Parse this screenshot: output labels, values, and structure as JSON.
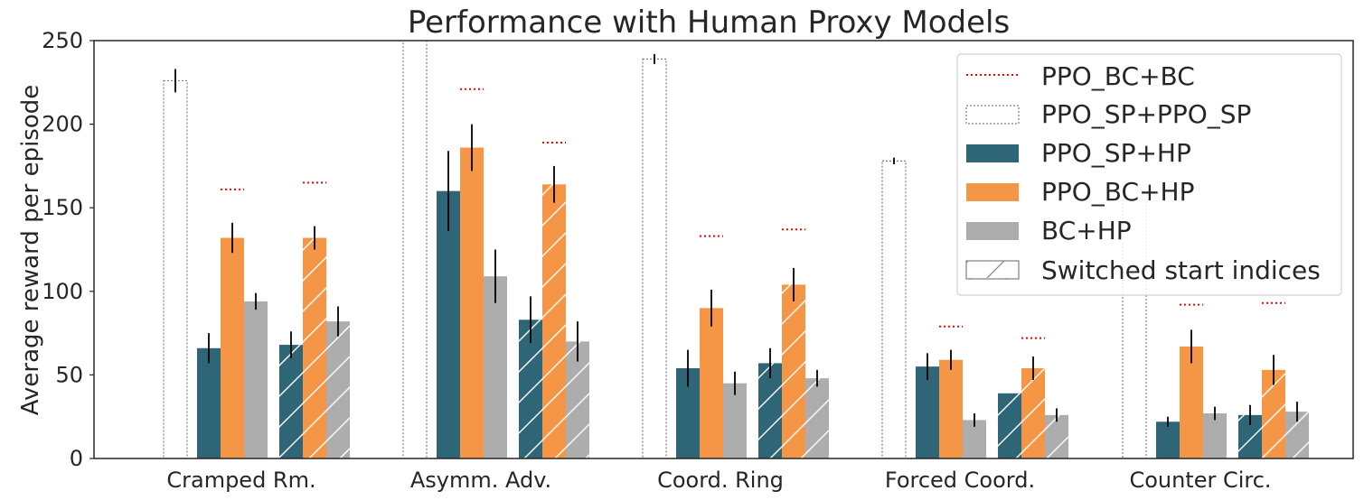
{
  "chart_data": {
    "type": "bar",
    "title": "Performance with Human Proxy Models",
    "xlabel": "",
    "ylabel": "Average reward per episode",
    "ylim": [
      0,
      250
    ],
    "yticks": [
      0,
      50,
      100,
      150,
      200,
      250
    ],
    "grid": false,
    "categories": [
      "Cramped Rm.",
      "Asymm. Adv.",
      "Coord. Ring",
      "Forced Coord.",
      "Counter Circ."
    ],
    "colors": {
      "ppo_sp_hp": "#2e6677",
      "ppo_bc_hp": "#f59647",
      "bc_hp": "#adadad",
      "ppo_bc_bc_line": "#ff0000",
      "ppo_sp_sp_edge": "#7f7f7f",
      "error_bar": "#000000",
      "hatch": "#ffffff"
    },
    "series": [
      {
        "name": "PPO_SP+PPO_SP",
        "values": [
          226,
          262,
          239,
          178,
          155
        ],
        "errors": [
          7,
          0,
          3,
          2,
          0
        ]
      },
      {
        "name": "PPO_SP+HP",
        "values": [
          66,
          160,
          54,
          55,
          22
        ],
        "errors": [
          9,
          24,
          11,
          8,
          3
        ]
      },
      {
        "name": "PPO_BC+HP",
        "values": [
          132,
          186,
          90,
          59,
          67
        ],
        "errors": [
          9,
          14,
          11,
          6,
          10
        ]
      },
      {
        "name": "BC+HP",
        "values": [
          94,
          109,
          45,
          23,
          27
        ],
        "errors": [
          5,
          16,
          7,
          4,
          4
        ]
      },
      {
        "name": "PPO_SP+HP (Switched start indices)",
        "values": [
          68,
          83,
          57,
          39,
          26
        ],
        "errors": [
          8,
          14,
          9,
          0,
          6
        ]
      },
      {
        "name": "PPO_BC+HP (Switched start indices)",
        "values": [
          132,
          164,
          104,
          54,
          53
        ],
        "errors": [
          7,
          11,
          10,
          7,
          9
        ]
      },
      {
        "name": "BC+HP (Switched start indices)",
        "values": [
          82,
          70,
          48,
          26,
          28
        ],
        "errors": [
          9,
          12,
          5,
          4,
          6
        ]
      },
      {
        "name": "PPO_BC+BC",
        "values": [
          161,
          221,
          133,
          79,
          92
        ]
      },
      {
        "name": "PPO_BC+BC (Switched start indices)",
        "values": [
          165,
          189,
          137,
          72,
          93
        ]
      }
    ],
    "legend": {
      "placement": "top-right",
      "entries": [
        {
          "label": "PPO_BC+BC",
          "style": "dotted-line"
        },
        {
          "label": "PPO_SP+PPO_SP",
          "style": "dotted-box"
        },
        {
          "label": "PPO_SP+HP",
          "style": "fill-teal"
        },
        {
          "label": "PPO_BC+HP",
          "style": "fill-orange"
        },
        {
          "label": "BC+HP",
          "style": "fill-gray"
        },
        {
          "label": "Switched start indices",
          "style": "hatch"
        }
      ]
    }
  }
}
